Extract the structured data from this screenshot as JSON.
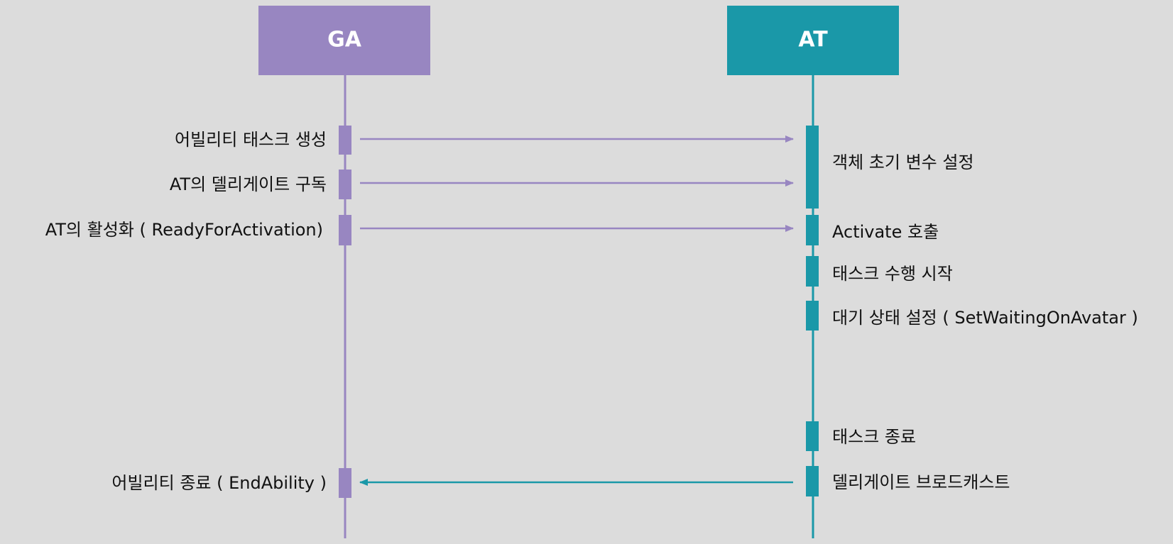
{
  "participants": [
    {
      "label": "GA"
    },
    {
      "label": "AT"
    }
  ],
  "ga_notes": [
    "어빌리티 태스크 생성",
    "AT의 델리게이트 구독",
    "AT의 활성화 ( ReadyForActivation)",
    "어빌리티 종료 ( EndAbility )"
  ],
  "at_notes": [
    "객체 초기 변수 설정",
    "Activate 호출",
    "태스크 수행 시작",
    "대기 상태 설정 ( SetWaitingOnAvatar )",
    "태스크 종료",
    "델리게이트 브로드캐스트"
  ]
}
